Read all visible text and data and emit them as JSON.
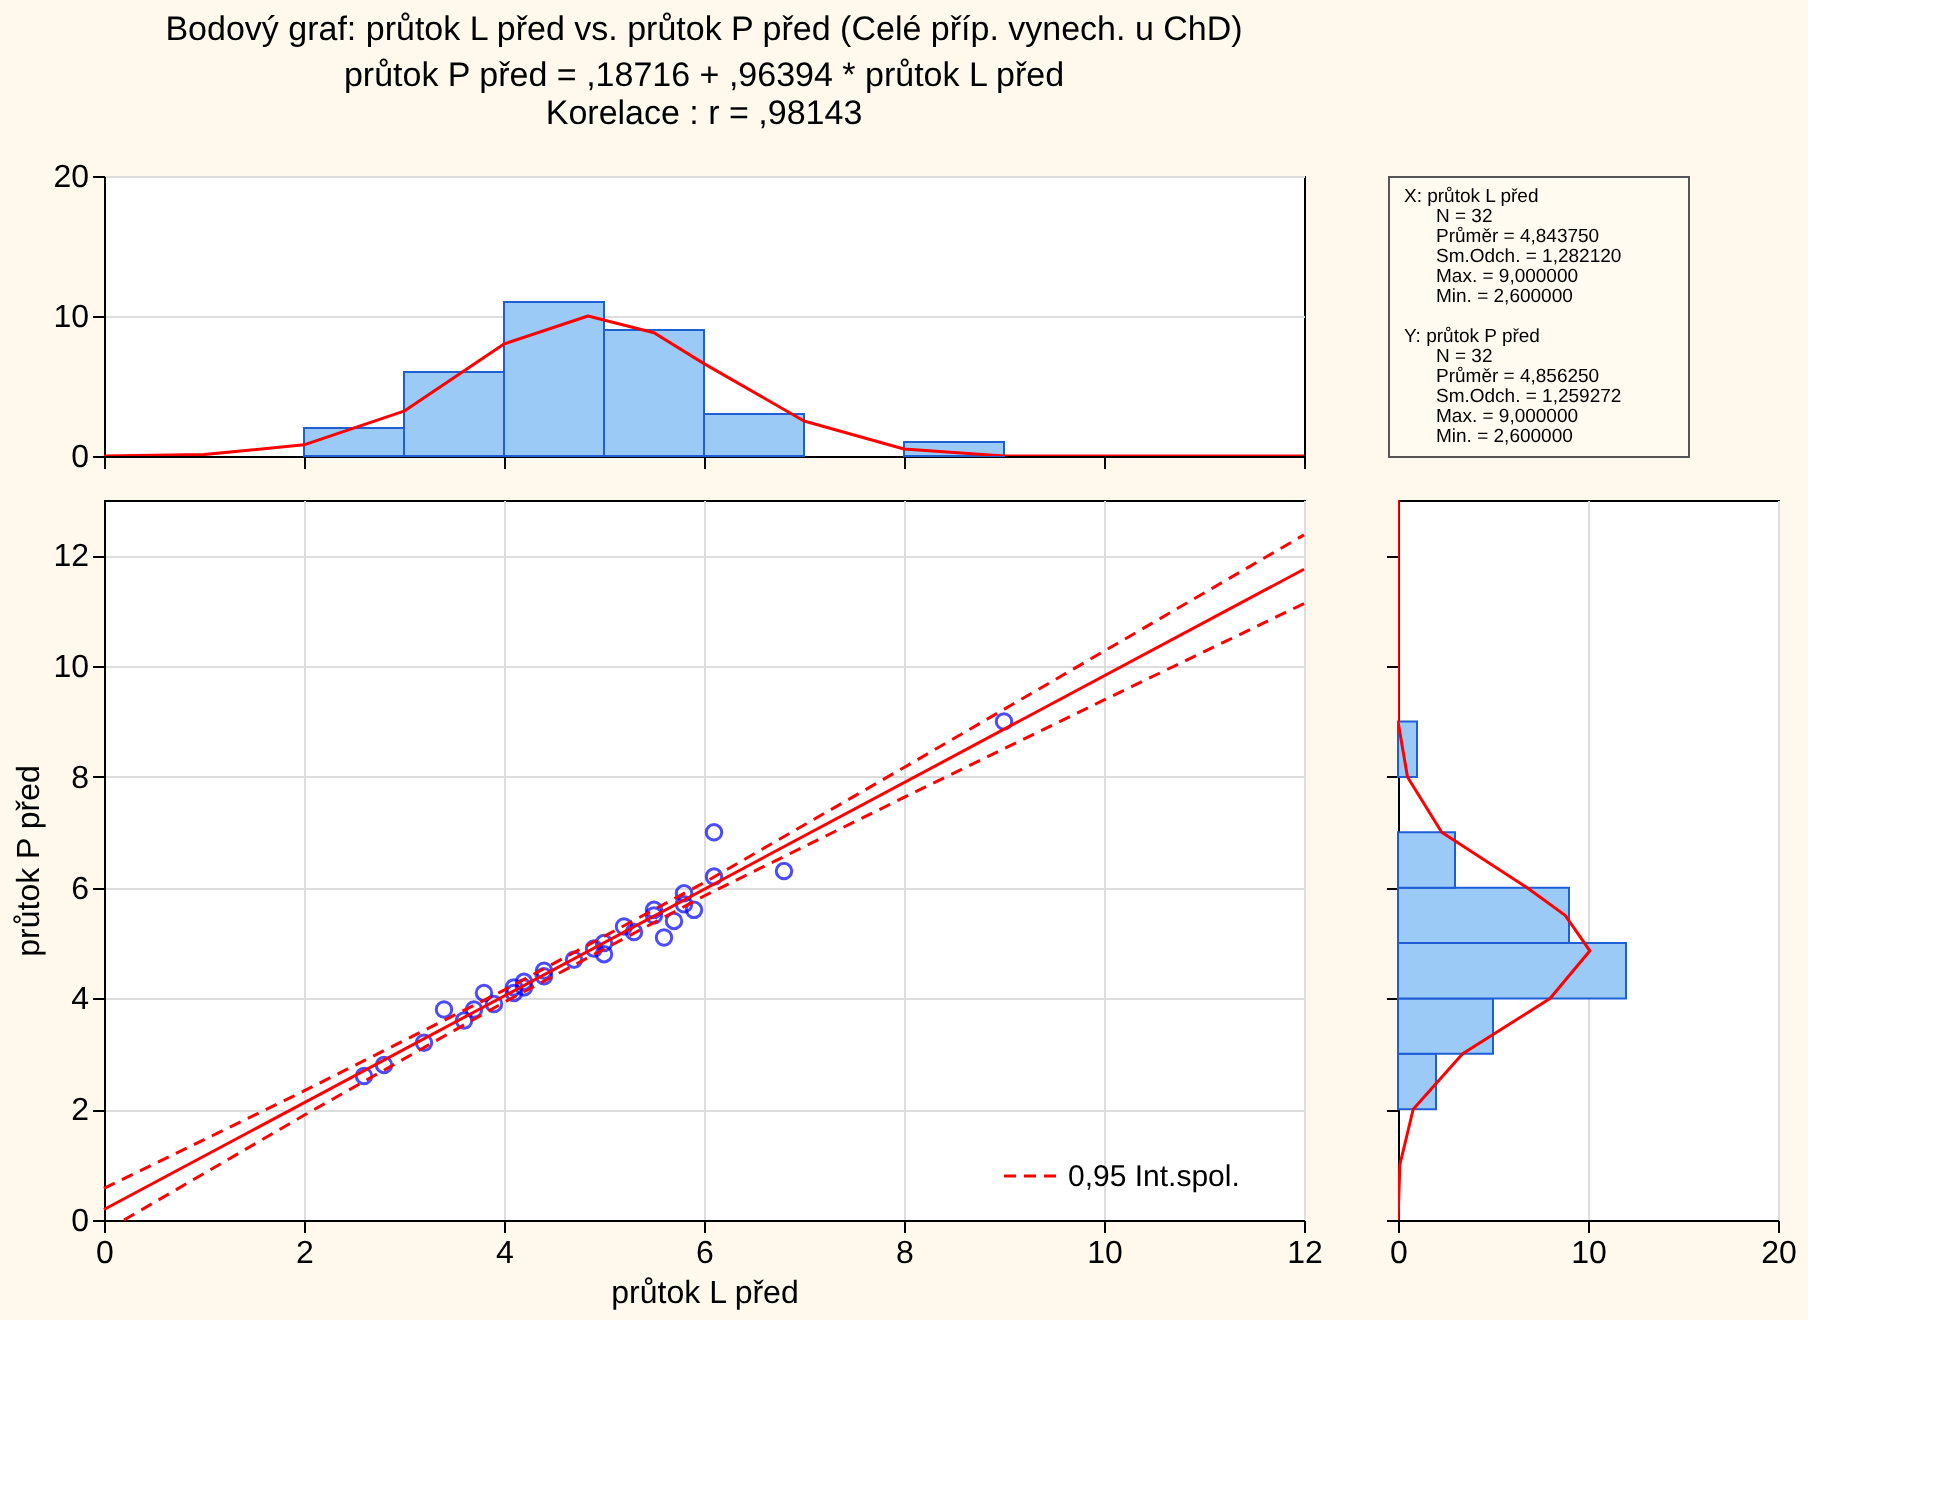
{
  "chart_data": [
    {
      "type": "histogram",
      "title": "Bodový graf: průtok L před vs. průtok P před (Celé příp. vynech. u ChD)",
      "subtitle": "průtok P před = ,18716 + ,96394 * průtok L před\nKorelace :   r = ,98143",
      "bins": [
        2,
        3,
        4,
        5,
        6,
        7,
        8,
        9
      ],
      "values": [
        2,
        6,
        11,
        9,
        3,
        0,
        1
      ],
      "color": "#9ccaf7",
      "xlim": [
        0,
        12
      ],
      "xticks": [
        {
          "value": 0,
          "label": null
        },
        {
          "value": 2,
          "label": null
        },
        {
          "value": 4,
          "label": null
        },
        {
          "value": 6,
          "label": null
        },
        {
          "value": 8,
          "label": null
        },
        {
          "value": 10,
          "label": null
        },
        {
          "value": 12,
          "label": null
        }
      ],
      "ylim": [
        0,
        20
      ],
      "yticks": [
        0,
        10,
        20
      ],
      "tick_labels": "y",
      "grid": "y",
      "series": [
        {
          "type": "line",
          "color": "#ff0000",
          "x": [
            0,
            1,
            2,
            3,
            4,
            4.84,
            5.5,
            6,
            7,
            8,
            9,
            10,
            12
          ],
          "values": [
            0,
            0.1,
            0.8,
            3.2,
            8,
            10,
            8.8,
            6.6,
            2.5,
            0.5,
            0,
            0,
            0
          ]
        }
      ]
    },
    {
      "type": "other",
      "annotations": [
        "X:  průtok L před",
        "N = 32",
        "Průměr = 4,843750",
        "Sm.Odch. = 1,282120",
        "Max. = 9,000000",
        "Min. = 2,600000",
        "Y:  průtok P před",
        "N = 32",
        "Průměr = 4,856250",
        "Sm.Odch. = 1,259272",
        "Max. = 9,000000",
        "Min. = 2,600000"
      ]
    },
    {
      "type": "scatter",
      "xlabel": "průtok L před",
      "ylabel": "průtok P před",
      "xlim": [
        0,
        12
      ],
      "xticks": [
        0,
        2,
        4,
        6,
        8,
        10,
        12
      ],
      "ylim": [
        0,
        13
      ],
      "yticks": [
        0,
        2,
        4,
        6,
        8,
        10,
        12
      ],
      "grid": true,
      "legend": "bottom right",
      "series": [
        {
          "type": "scatter",
          "color": "#0000ff",
          "marker": "circle",
          "x": [
            2.6,
            2.8,
            3.2,
            3.4,
            3.6,
            3.7,
            3.8,
            3.9,
            4.1,
            4.1,
            4.2,
            4.2,
            4.4,
            4.4,
            4.7,
            4.9,
            5.0,
            5.0,
            5.2,
            5.3,
            5.5,
            5.5,
            5.6,
            5.7,
            5.8,
            5.8,
            5.9,
            6.1,
            6.1,
            6.8,
            9.0
          ],
          "values": [
            2.6,
            2.8,
            3.2,
            3.8,
            3.6,
            3.8,
            4.1,
            3.9,
            4.2,
            4.1,
            4.3,
            4.2,
            4.5,
            4.4,
            4.7,
            4.9,
            5.0,
            4.8,
            5.3,
            5.2,
            5.6,
            5.5,
            5.1,
            5.4,
            5.9,
            5.7,
            5.6,
            7.0,
            6.2,
            6.3,
            9.0
          ]
        },
        {
          "type": "line",
          "color": "#ff0000",
          "line_style": "solid",
          "x": [
            0,
            12
          ],
          "values": [
            0.19,
            11.75
          ]
        },
        {
          "type": "line",
          "name": "0,95 Int.spol.",
          "color": "#ff0000",
          "line_style": "dashed",
          "x": [
            0,
            2,
            4,
            6,
            8,
            10,
            12
          ],
          "values": [
            0.57,
            2.33,
            4.15,
            6.09,
            8.17,
            10.27,
            12.37
          ]
        },
        {
          "type": "line",
          "color": "#ff0000",
          "line_style": "dashed",
          "x": [
            0.2,
            2,
            4,
            6,
            8,
            10,
            12
          ],
          "values": [
            0,
            1.89,
            3.93,
            5.85,
            7.63,
            9.39,
            11.13
          ]
        }
      ]
    },
    {
      "type": "histogram",
      "orientation": "horizontal",
      "bins": [
        2,
        3,
        4,
        5,
        6,
        7,
        8,
        9
      ],
      "values": [
        2,
        5,
        12,
        9,
        3,
        0,
        1
      ],
      "color": "#9ccaf7",
      "xlim": [
        0,
        20
      ],
      "xticks": [
        0,
        10,
        20
      ],
      "ylim": [
        0,
        13
      ],
      "yticks": [
        {
          "value": 0,
          "label": null
        },
        {
          "value": 2,
          "label": null
        },
        {
          "value": 4,
          "label": null
        },
        {
          "value": 6,
          "label": null
        },
        {
          "value": 8,
          "label": null
        },
        {
          "value": 10,
          "label": null
        },
        {
          "value": 12,
          "label": null
        }
      ],
      "tick_labels": "x",
      "grid": "x",
      "series": [
        {
          "type": "line",
          "color": "#ff0000",
          "x": [
            0,
            1,
            2,
            3,
            4,
            4.86,
            5.5,
            6,
            7,
            8,
            9,
            10,
            13
          ],
          "values": [
            0,
            0.1,
            0.8,
            3.4,
            8,
            10.1,
            8.8,
            6.8,
            2.3,
            0.5,
            0,
            0,
            0
          ]
        }
      ]
    }
  ]
}
